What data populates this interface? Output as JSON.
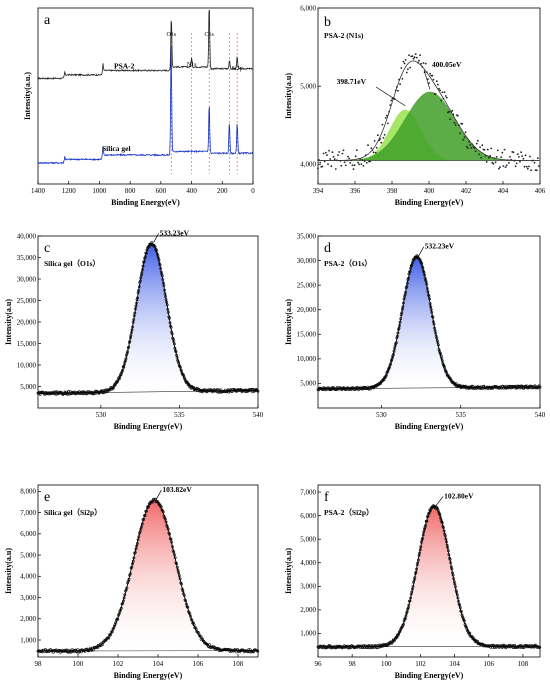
{
  "colors": {
    "blue_fill": "#4f6fe8",
    "red_fill": "#f08080",
    "green_light": "#9ee35a",
    "green_dark": "#3f9f28",
    "psa_line": "#222222",
    "silica_line": "#1530c8",
    "guide": "#ff6060"
  },
  "chart_data": [
    {
      "id": "a",
      "letter": "a",
      "type": "line",
      "xlabel": "Binding Energy(eV)",
      "ylabel": "Intensity(a.u.)",
      "xlim": [
        1400,
        0
      ],
      "xticks": [
        1400,
        1200,
        1000,
        800,
        600,
        400,
        200,
        0
      ],
      "series": [
        {
          "name": "PSA-2",
          "baseline": 0.6,
          "peaks": [
            [
              532,
              0.3
            ],
            [
              400,
              0.05
            ],
            [
              285,
              0.38
            ],
            [
              153,
              0.05
            ],
            [
              103,
              0.07
            ],
            [
              978,
              0.04
            ],
            [
              1228,
              0.02
            ]
          ]
        },
        {
          "name": "Silica gel",
          "baseline": 0.12,
          "peaks": [
            [
              533,
              0.62
            ],
            [
              285,
              0.28
            ],
            [
              154,
              0.17
            ],
            [
              103,
              0.17
            ],
            [
              978,
              0.05
            ],
            [
              1228,
              0.02
            ]
          ]
        }
      ],
      "peak_labels": [
        {
          "text": "O1s",
          "x": 532
        },
        {
          "text": "N1s",
          "x": 400
        },
        {
          "text": "C1s",
          "x": 285
        },
        {
          "text": "Si2p",
          "x": 103
        }
      ],
      "guides": [
        532,
        400,
        285,
        153,
        103
      ]
    },
    {
      "id": "b",
      "letter": "b",
      "title": "PSA-2 (N1s)",
      "type": "line",
      "xlabel": "Binding Energy(eV)",
      "ylabel": "Intensity(a.u)",
      "xlim": [
        394,
        406
      ],
      "ylim": [
        3750,
        6000
      ],
      "xticks": [
        394,
        396,
        398,
        400,
        402,
        404,
        406
      ],
      "yticks": [
        4000,
        5000,
        6000
      ],
      "yticklabels": [
        "4,000",
        "5,000",
        "6,000"
      ],
      "background": 4050,
      "components": [
        {
          "center": 398.71,
          "height": 650,
          "sigma": 0.85,
          "label": "398.71eV"
        },
        {
          "center": 400.05,
          "height": 880,
          "sigma": 1.35,
          "label": "400.05eV"
        }
      ]
    },
    {
      "id": "c",
      "letter": "c",
      "title": "Silica gel（O1s）",
      "type": "line",
      "xlabel": "Binding Energy(eV)",
      "ylabel": "Intensity(a.u)",
      "xlim": [
        526,
        540
      ],
      "ylim": [
        0,
        40000
      ],
      "xticks": [
        530,
        535,
        540
      ],
      "yticks": [
        5000,
        10000,
        15000,
        20000,
        25000,
        30000,
        35000,
        40000
      ],
      "yticklabels": [
        "5,000",
        "10,000",
        "15,000",
        "20,000",
        "25,000",
        "30,000",
        "35,000",
        "40,000"
      ],
      "peak": {
        "center": 533.23,
        "height": 34500,
        "sigma": 0.95,
        "label": "533.23eV"
      },
      "baseline": [
        3400,
        4100
      ]
    },
    {
      "id": "d",
      "letter": "d",
      "title": "PSA-2（O1s）",
      "type": "line",
      "xlabel": "Binding Energy(eV)",
      "ylabel": "Intensity(a.u)",
      "xlim": [
        526,
        540
      ],
      "ylim": [
        0,
        35000
      ],
      "xticks": [
        530,
        535,
        540
      ],
      "yticks": [
        5000,
        10000,
        15000,
        20000,
        25000,
        30000,
        35000
      ],
      "yticklabels": [
        "5,000",
        "10,000",
        "15,000",
        "20,000",
        "25,000",
        "30,000",
        "35,000"
      ],
      "peak": {
        "center": 532.23,
        "height": 26700,
        "sigma": 0.9,
        "label": "532.23eV"
      },
      "baseline": [
        3900,
        4300
      ]
    },
    {
      "id": "e",
      "letter": "e",
      "title": "Silica gel（Si2p）",
      "type": "line",
      "xlabel": "Binding Energy(eV)",
      "ylabel": "Intensity(a.u)",
      "xlim": [
        98,
        109
      ],
      "ylim": [
        200,
        8300
      ],
      "xticks": [
        98,
        100,
        102,
        104,
        106,
        108
      ],
      "yticks": [
        1000,
        2000,
        3000,
        4000,
        5000,
        6000,
        7000,
        8000
      ],
      "yticklabels": [
        "1,000",
        "2,000",
        "3,000",
        "4,000",
        "5,000",
        "6,000",
        "7,000",
        "8,000"
      ],
      "peak": {
        "center": 103.82,
        "height": 7100,
        "sigma": 1.05,
        "label": "103.82eV"
      },
      "baseline": [
        480,
        500
      ]
    },
    {
      "id": "f",
      "letter": "f",
      "title": "PSA-2（Si2p）",
      "type": "line",
      "xlabel": "Binding Energy(eV)",
      "ylabel": "Intensity(a.u)",
      "xlim": [
        96,
        109
      ],
      "ylim": [
        0,
        7300
      ],
      "xticks": [
        96,
        98,
        100,
        102,
        104,
        106,
        108
      ],
      "yticks": [
        1000,
        2000,
        3000,
        4000,
        5000,
        6000,
        7000
      ],
      "yticklabels": [
        "1,000",
        "2,000",
        "3,000",
        "4,000",
        "5,000",
        "6,000",
        "7,000"
      ],
      "peak": {
        "center": 102.8,
        "height": 5950,
        "sigma": 0.95,
        "label": "102.80eV"
      },
      "baseline": [
        430,
        450
      ]
    }
  ]
}
